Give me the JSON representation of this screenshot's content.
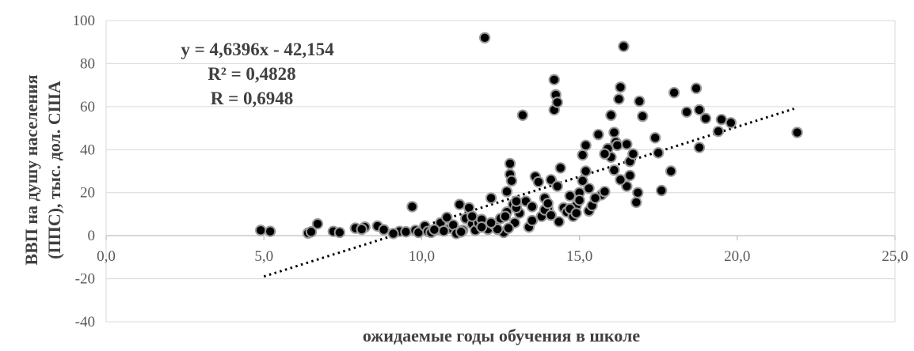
{
  "chart_data": {
    "type": "scatter",
    "title": "",
    "xlabel": "ожидаемые годы обучения в школе",
    "ylabel_lines": [
      "ВВП на душу населения",
      "(ППС), тыс. дол. США"
    ],
    "xlim": [
      0,
      25
    ],
    "ylim": [
      -40,
      100
    ],
    "x_ticks": [
      0,
      5,
      10,
      15,
      20,
      25
    ],
    "x_tick_labels": [
      "0,0",
      "5,0",
      "10,0",
      "15,0",
      "20,0",
      "25,0"
    ],
    "y_ticks": [
      -40,
      -20,
      0,
      20,
      40,
      60,
      80,
      100
    ],
    "y_tick_labels": [
      "-40",
      "-20",
      "0",
      "20",
      "40",
      "60",
      "80",
      "100"
    ],
    "grid": "horizontal",
    "trendline": {
      "slope": 4.6396,
      "intercept": -42.154,
      "x_range": [
        5.0,
        21.8
      ],
      "style": "dotted"
    },
    "annotations": [
      "y = 4,6396x - 42,154",
      "R² = 0,4828",
      "R = 0,6948"
    ],
    "marker_color": "#000000",
    "marker_edge_color": "#9a9a9a",
    "grid_color": "#d9d9d9",
    "points": [
      [
        4.9,
        2.5
      ],
      [
        5.2,
        2.0
      ],
      [
        6.4,
        1.2
      ],
      [
        6.7,
        5.5
      ],
      [
        7.2,
        2.0
      ],
      [
        7.4,
        1.5
      ],
      [
        7.9,
        3.5
      ],
      [
        8.2,
        4.0
      ],
      [
        8.6,
        4.5
      ],
      [
        8.8,
        2.8
      ],
      [
        9.3,
        2.0
      ],
      [
        9.5,
        1.8
      ],
      [
        9.7,
        13.5
      ],
      [
        9.8,
        2.5
      ],
      [
        9.9,
        1.5
      ],
      [
        10.1,
        4.5
      ],
      [
        10.2,
        2.0
      ],
      [
        10.5,
        3.0
      ],
      [
        10.6,
        6.0
      ],
      [
        10.8,
        8.5
      ],
      [
        10.9,
        3.5
      ],
      [
        11.0,
        5.0
      ],
      [
        11.1,
        1.0
      ],
      [
        11.2,
        14.5
      ],
      [
        11.3,
        2.5
      ],
      [
        11.4,
        8.0
      ],
      [
        11.5,
        13.0
      ],
      [
        11.6,
        5.5
      ],
      [
        11.7,
        2.5
      ],
      [
        11.8,
        6.0
      ],
      [
        11.9,
        7.5
      ],
      [
        12.0,
        92.0
      ],
      [
        12.1,
        3.0
      ],
      [
        12.2,
        17.5
      ],
      [
        12.3,
        5.0
      ],
      [
        12.5,
        8.0
      ],
      [
        12.6,
        1.5
      ],
      [
        12.7,
        20.5
      ],
      [
        12.7,
        11.0
      ],
      [
        12.8,
        33.5
      ],
      [
        12.8,
        28.5
      ],
      [
        12.85,
        25.5
      ],
      [
        12.9,
        14.5
      ],
      [
        12.95,
        6.0
      ],
      [
        13.1,
        10.5
      ],
      [
        13.2,
        56.0
      ],
      [
        13.3,
        16.0
      ],
      [
        13.4,
        4.0
      ],
      [
        13.5,
        13.5
      ],
      [
        13.6,
        27.5
      ],
      [
        13.7,
        25.0
      ],
      [
        13.8,
        9.0
      ],
      [
        13.9,
        17.5
      ],
      [
        14.0,
        12.5
      ],
      [
        14.1,
        26.0
      ],
      [
        14.2,
        72.5
      ],
      [
        14.2,
        58.5
      ],
      [
        14.25,
        65.5
      ],
      [
        14.3,
        62.0
      ],
      [
        14.3,
        23.0
      ],
      [
        14.4,
        31.5
      ],
      [
        14.5,
        13.0
      ],
      [
        14.6,
        11.0
      ],
      [
        14.7,
        18.5
      ],
      [
        14.8,
        9.0
      ],
      [
        14.9,
        14.0
      ],
      [
        15.0,
        20.0
      ],
      [
        15.1,
        25.5
      ],
      [
        15.1,
        37.5
      ],
      [
        15.2,
        42.0
      ],
      [
        15.2,
        30.0
      ],
      [
        15.3,
        11.5
      ],
      [
        15.4,
        14.0
      ],
      [
        15.6,
        47.0
      ],
      [
        15.7,
        19.0
      ],
      [
        15.8,
        20.5
      ],
      [
        15.9,
        40.5
      ],
      [
        16.0,
        56.0
      ],
      [
        16.0,
        36.5
      ],
      [
        16.1,
        48.0
      ],
      [
        16.15,
        43.5
      ],
      [
        16.2,
        42.0
      ],
      [
        16.25,
        63.5
      ],
      [
        16.3,
        69.0
      ],
      [
        16.4,
        88.0
      ],
      [
        16.5,
        23.0
      ],
      [
        16.5,
        42.5
      ],
      [
        16.6,
        34.5
      ],
      [
        16.7,
        38.0
      ],
      [
        16.8,
        15.5
      ],
      [
        16.85,
        20.0
      ],
      [
        16.9,
        62.5
      ],
      [
        17.0,
        55.5
      ],
      [
        17.4,
        45.5
      ],
      [
        17.5,
        38.5
      ],
      [
        17.6,
        21.0
      ],
      [
        17.9,
        30.0
      ],
      [
        18.0,
        66.5
      ],
      [
        18.4,
        57.5
      ],
      [
        18.7,
        68.5
      ],
      [
        18.8,
        41.0
      ],
      [
        18.8,
        58.5
      ],
      [
        19.0,
        54.5
      ],
      [
        19.4,
        48.5
      ],
      [
        19.5,
        54.0
      ],
      [
        19.8,
        52.5
      ],
      [
        21.9,
        48.0
      ],
      [
        6.5,
        1.8
      ],
      [
        8.1,
        3.0
      ],
      [
        9.1,
        1.0
      ],
      [
        10.3,
        1.5
      ],
      [
        10.7,
        2.2
      ],
      [
        11.25,
        1.8
      ],
      [
        11.9,
        4.0
      ],
      [
        12.4,
        3.0
      ],
      [
        12.65,
        9.0
      ],
      [
        13.0,
        13.0
      ],
      [
        13.5,
        7.0
      ],
      [
        13.9,
        12.0
      ],
      [
        14.1,
        9.5
      ],
      [
        14.35,
        6.5
      ],
      [
        14.7,
        12.5
      ],
      [
        15.0,
        16.5
      ],
      [
        15.5,
        17.5
      ],
      [
        16.1,
        30.5
      ],
      [
        16.3,
        26.0
      ],
      [
        16.6,
        28.0
      ],
      [
        14.9,
        10.5
      ],
      [
        12.2,
        6.0
      ],
      [
        11.6,
        9.0
      ],
      [
        13.0,
        16.0
      ],
      [
        14.0,
        15.0
      ],
      [
        15.3,
        22.0
      ],
      [
        15.8,
        38.0
      ],
      [
        12.75,
        3.5
      ],
      [
        10.4,
        2.8
      ]
    ]
  }
}
